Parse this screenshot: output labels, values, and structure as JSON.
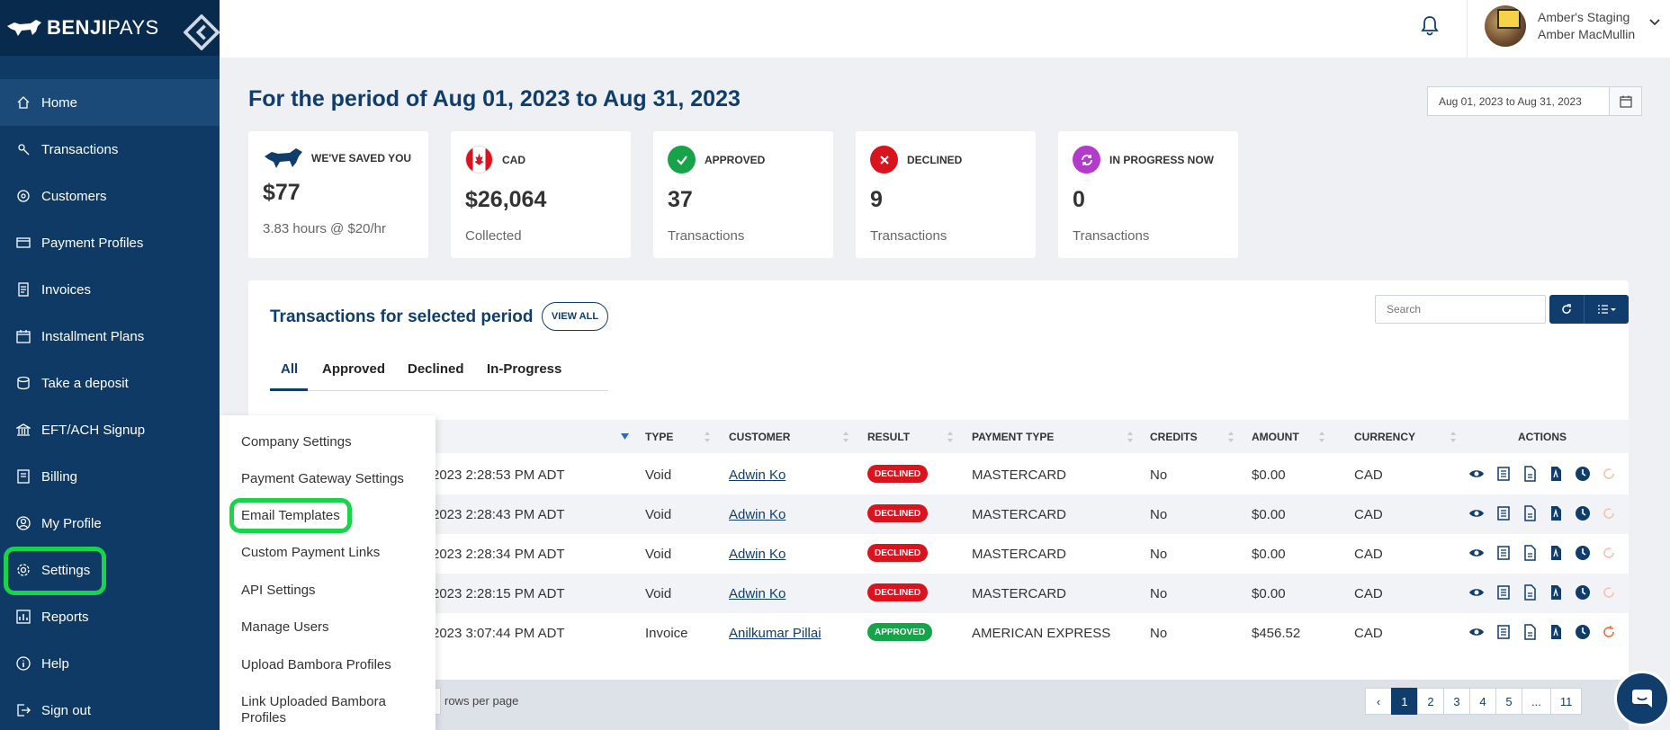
{
  "brand": {
    "name_bold": "BENJI",
    "name_thin": "PAYS"
  },
  "sidebar": {
    "items": [
      {
        "label": "Home",
        "icon": "home-icon"
      },
      {
        "label": "Transactions",
        "icon": "transactions-icon"
      },
      {
        "label": "Customers",
        "icon": "customers-icon"
      },
      {
        "label": "Payment Profiles",
        "icon": "payment-profiles-icon"
      },
      {
        "label": "Invoices",
        "icon": "invoices-icon"
      },
      {
        "label": "Installment Plans",
        "icon": "installment-plans-icon"
      },
      {
        "label": "Take a deposit",
        "icon": "deposit-icon"
      },
      {
        "label": "EFT/ACH Signup",
        "icon": "bank-icon"
      },
      {
        "label": "Billing",
        "icon": "billing-icon"
      },
      {
        "label": "My Profile",
        "icon": "profile-icon"
      },
      {
        "label": "Settings",
        "icon": "gear-icon"
      },
      {
        "label": "Reports",
        "icon": "reports-icon"
      },
      {
        "label": "Help",
        "icon": "help-icon"
      },
      {
        "label": "Sign out",
        "icon": "sign-out-icon"
      }
    ]
  },
  "header": {
    "org": "Amber's Staging",
    "user": "Amber MacMullin"
  },
  "period": {
    "title": "For the period of Aug 01, 2023 to Aug 31, 2023",
    "range_value": "Aug 01, 2023 to Aug 31, 2023"
  },
  "cards": {
    "saved": {
      "label": "WE'VE SAVED YOU",
      "value": "$77",
      "sub": "3.83 hours @ $20/hr"
    },
    "cad": {
      "label": "CAD",
      "value": "$26,064",
      "sub": "Collected"
    },
    "approved": {
      "label": "APPROVED",
      "value": "37",
      "sub": "Transactions"
    },
    "declined": {
      "label": "DECLINED",
      "value": "9",
      "sub": "Transactions"
    },
    "in_progress": {
      "label": "IN PROGRESS NOW",
      "value": "0",
      "sub": "Transactions"
    }
  },
  "transactions": {
    "title": "Transactions for selected period",
    "view_all": "VIEW ALL",
    "search_placeholder": "Search",
    "tabs": [
      "All",
      "Approved",
      "Declined",
      "In-Progress"
    ],
    "columns": [
      "TYPE",
      "CUSTOMER",
      "RESULT",
      "PAYMENT TYPE",
      "CREDITS",
      "AMOUNT",
      "CURRENCY",
      "ACTIONS"
    ],
    "rows": [
      {
        "date": "2023 2:28:53 PM ADT",
        "type": "Void",
        "customer": "Adwin Ko",
        "result": "DECLINED",
        "payment_type": "MASTERCARD",
        "credits": "No",
        "amount": "$0.00",
        "currency": "CAD"
      },
      {
        "date": "2023 2:28:43 PM ADT",
        "type": "Void",
        "customer": "Adwin Ko",
        "result": "DECLINED",
        "payment_type": "MASTERCARD",
        "credits": "No",
        "amount": "$0.00",
        "currency": "CAD"
      },
      {
        "date": "2023 2:28:34 PM ADT",
        "type": "Void",
        "customer": "Adwin Ko",
        "result": "DECLINED",
        "payment_type": "MASTERCARD",
        "credits": "No",
        "amount": "$0.00",
        "currency": "CAD"
      },
      {
        "date": "2023 2:28:15 PM ADT",
        "type": "Void",
        "customer": "Adwin Ko",
        "result": "DECLINED",
        "payment_type": "MASTERCARD",
        "credits": "No",
        "amount": "$0.00",
        "currency": "CAD"
      },
      {
        "date": "2023 3:07:44 PM ADT",
        "type": "Invoice",
        "customer": "Anilkumar Pillai",
        "result": "APPROVED",
        "payment_type": "AMERICAN EXPRESS",
        "credits": "No",
        "amount": "$456.52",
        "currency": "CAD"
      }
    ],
    "rows_per_page_label": "rows per page",
    "pages": [
      "‹",
      "1",
      "2",
      "3",
      "4",
      "5",
      "...",
      "11"
    ]
  },
  "settings_menu": {
    "items": [
      "Company Settings",
      "Payment Gateway Settings",
      "Email Templates",
      "Custom Payment Links",
      "API Settings",
      "Manage Users",
      "Upload Bambora Profiles",
      "Link Uploaded Bambora",
      "Profiles"
    ]
  },
  "colors": {
    "sidebar": "#0f3a66",
    "brand": "#103d6b",
    "declined": "#d9141f",
    "approved": "#16a34a",
    "highlight": "#19d34a",
    "in_progress": "#b23cc9"
  }
}
